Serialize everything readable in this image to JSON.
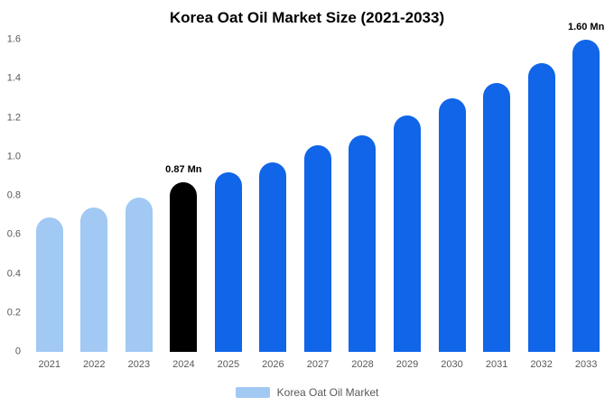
{
  "chart_data": {
    "type": "bar",
    "title": "Korea Oat Oil Market Size (2021-2033)",
    "legend": "Korea Oat Oil Market",
    "categories": [
      "2021",
      "2022",
      "2023",
      "2024",
      "2025",
      "2026",
      "2027",
      "2028",
      "2029",
      "2030",
      "2031",
      "2032",
      "2033"
    ],
    "values": [
      0.69,
      0.74,
      0.79,
      0.87,
      0.92,
      0.97,
      1.06,
      1.11,
      1.21,
      1.3,
      1.38,
      1.48,
      1.6
    ],
    "bar_colors": [
      "#a1c9f3",
      "#a1c9f3",
      "#a1c9f3",
      "#000000",
      "#1065e8",
      "#1065e8",
      "#1065e8",
      "#1065e8",
      "#1065e8",
      "#1065e8",
      "#1065e8",
      "#1065e8",
      "#1065e8"
    ],
    "annotations": [
      {
        "category": "2024",
        "text": "0.87 Mn"
      },
      {
        "category": "2033",
        "text": "1.60 Mn"
      }
    ],
    "yticks": [
      "0",
      "0.2",
      "0.4",
      "0.6",
      "0.8",
      "1.0",
      "1.2",
      "1.4",
      "1.6"
    ],
    "ylim": [
      0,
      1.6
    ],
    "xlabel": "",
    "ylabel": "",
    "grid": false,
    "legend_position": "bottom",
    "colors": {
      "historical": "#a1c9f3",
      "highlight": "#000000",
      "forecast": "#1065e8",
      "legend_swatch": "#a1c9f3",
      "tick_text": "#595959",
      "title_text": "#000000"
    }
  }
}
